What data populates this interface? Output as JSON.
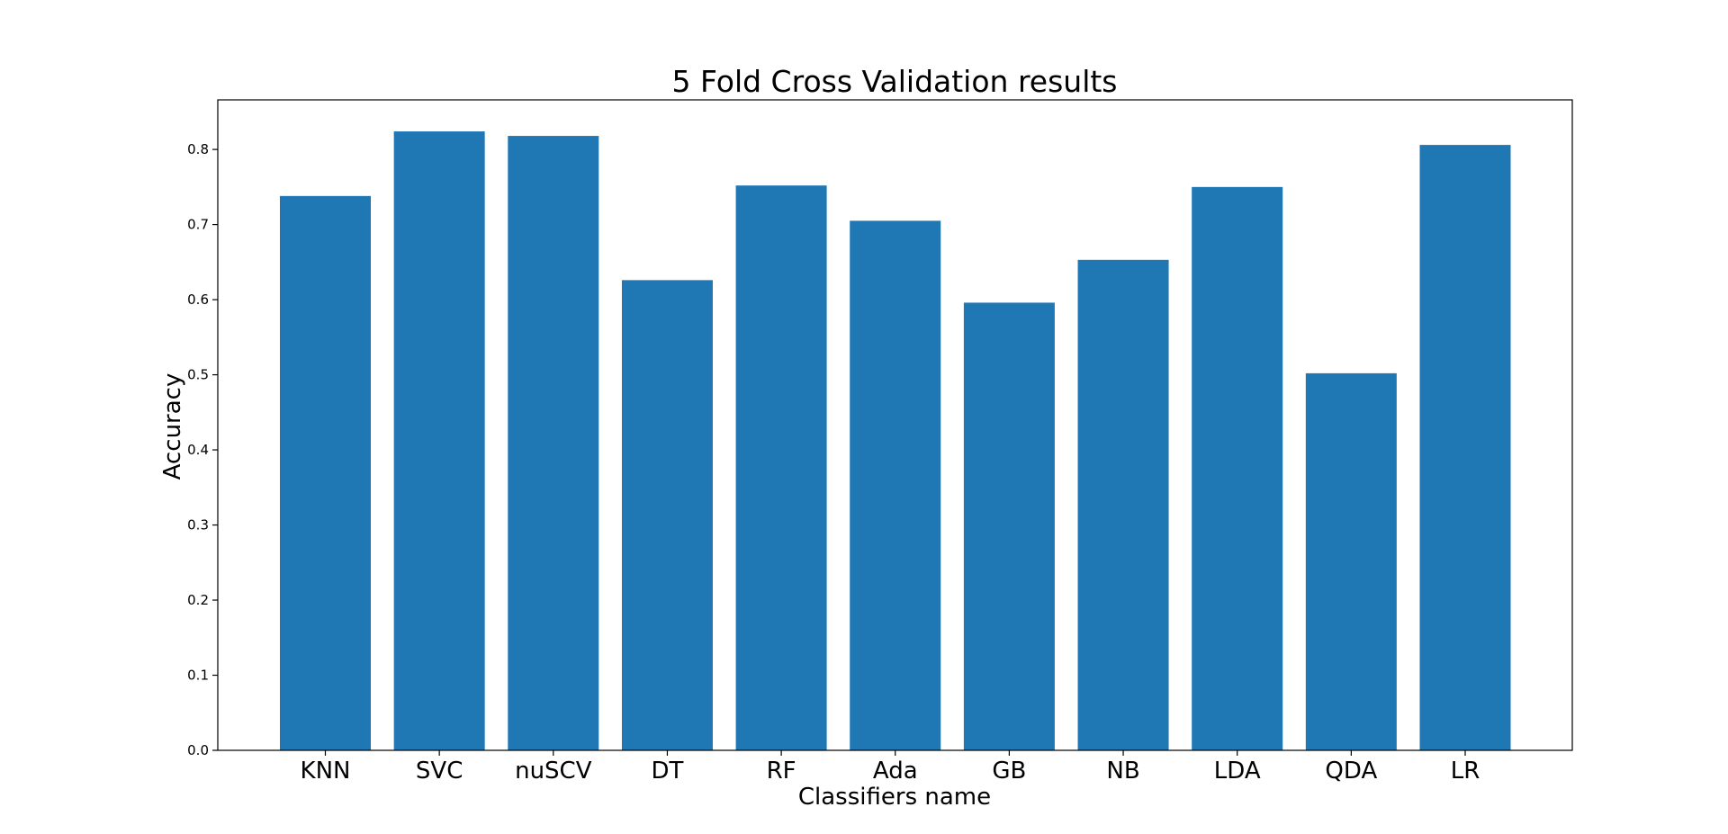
{
  "chart_data": {
    "type": "bar",
    "title": "5 Fold Cross Validation results",
    "xlabel": "Classifiers name",
    "ylabel": "Accuracy",
    "categories": [
      "KNN",
      "SVC",
      "nuSCV",
      "DT",
      "RF",
      "Ada",
      "GB",
      "NB",
      "LDA",
      "QDA",
      "LR"
    ],
    "values": [
      0.738,
      0.824,
      0.818,
      0.626,
      0.752,
      0.705,
      0.596,
      0.653,
      0.75,
      0.502,
      0.806
    ],
    "ylim": [
      0.0,
      0.866
    ],
    "yticks": [
      "0.0",
      "0.1",
      "0.2",
      "0.3",
      "0.4",
      "0.5",
      "0.6",
      "0.7",
      "0.8"
    ],
    "bar_color": "#1f77b4",
    "grid": false,
    "legend": "none"
  }
}
